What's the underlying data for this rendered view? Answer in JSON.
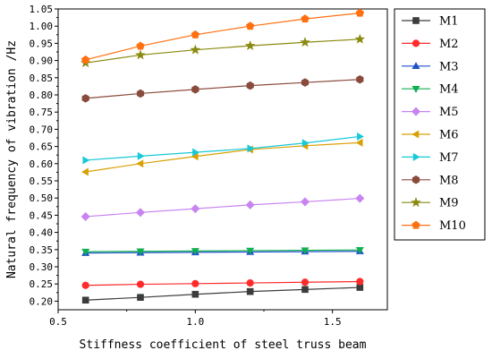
{
  "chart_data": {
    "type": "line",
    "title": "",
    "xlabel": "Stiffness coefficient of steel truss beam",
    "ylabel": "Natural frequency of vibration /Hz",
    "xlim": [
      0.5,
      1.7
    ],
    "ylim": [
      0.175,
      1.05
    ],
    "x_ticks": [
      "0.5",
      "1.0",
      "1.5"
    ],
    "y_ticks": [
      "0.20",
      "0.25",
      "0.30",
      "0.35",
      "0.40",
      "0.45",
      "0.50",
      "0.55",
      "0.60",
      "0.65",
      "0.70",
      "0.75",
      "0.80",
      "0.85",
      "0.90",
      "0.95",
      "1.00",
      "1.05"
    ],
    "x": [
      0.6,
      0.8,
      1.0,
      1.2,
      1.4,
      1.6
    ],
    "legend_position": "right",
    "series": [
      {
        "name": "M1",
        "color": "#3c3c3c",
        "marker": "square",
        "values": [
          0.203,
          0.211,
          0.22,
          0.228,
          0.234,
          0.24
        ]
      },
      {
        "name": "M2",
        "color": "#ff2a2a",
        "marker": "circle",
        "values": [
          0.246,
          0.249,
          0.251,
          0.253,
          0.255,
          0.257
        ]
      },
      {
        "name": "M3",
        "color": "#1f52c8",
        "marker": "triangle-up",
        "values": [
          0.34,
          0.341,
          0.342,
          0.343,
          0.344,
          0.345
        ]
      },
      {
        "name": "M4",
        "color": "#10b050",
        "marker": "triangle-down",
        "values": [
          0.344,
          0.345,
          0.346,
          0.347,
          0.348,
          0.349
        ]
      },
      {
        "name": "M5",
        "color": "#c884f0",
        "marker": "diamond",
        "values": [
          0.446,
          0.458,
          0.469,
          0.48,
          0.489,
          0.499
        ]
      },
      {
        "name": "M6",
        "color": "#d8a000",
        "marker": "triangle-left",
        "values": [
          0.576,
          0.6,
          0.621,
          0.641,
          0.652,
          0.661
        ]
      },
      {
        "name": "M7",
        "color": "#18c8d8",
        "marker": "triangle-right",
        "values": [
          0.61,
          0.622,
          0.633,
          0.644,
          0.66,
          0.679
        ]
      },
      {
        "name": "M8",
        "color": "#8a4a3c",
        "marker": "hexagon",
        "values": [
          0.79,
          0.804,
          0.816,
          0.827,
          0.836,
          0.845
        ]
      },
      {
        "name": "M9",
        "color": "#8a8a10",
        "marker": "star",
        "values": [
          0.893,
          0.916,
          0.931,
          0.943,
          0.953,
          0.962
        ]
      },
      {
        "name": "M10",
        "color": "#ff7010",
        "marker": "pentagon",
        "values": [
          0.902,
          0.942,
          0.975,
          1.0,
          1.021,
          1.038
        ]
      }
    ]
  }
}
